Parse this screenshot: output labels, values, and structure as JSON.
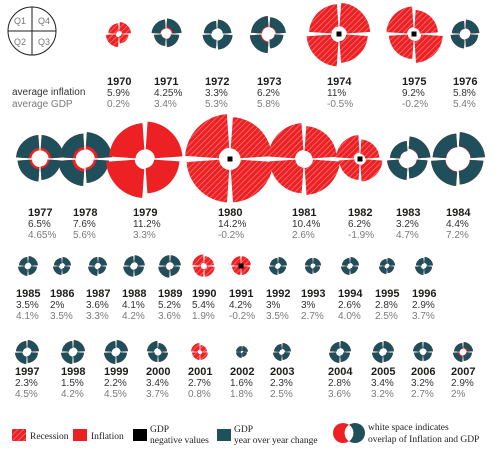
{
  "chart_data": {
    "type": "polar-area",
    "title": "",
    "key_quarters": [
      "Q1",
      "Q4",
      "Q2",
      "Q3"
    ],
    "row_labels": {
      "inflation": "average inflation",
      "gdp": "average GDP"
    },
    "years": [
      {
        "year": "1970",
        "inflation": "5.9%",
        "gdp": "0.2%",
        "q": [
          0.45,
          0.55,
          0.4,
          0.5
        ],
        "recession": true
      },
      {
        "year": "1971",
        "inflation": "4.25%",
        "gdp": "3.4%",
        "q": [
          0.6,
          0.5,
          0.55,
          0.65
        ]
      },
      {
        "year": "1972",
        "inflation": "3.3%",
        "gdp": "5.3%",
        "q": [
          0.55,
          0.6,
          0.65,
          0.6
        ]
      },
      {
        "year": "1973",
        "inflation": "6.2%",
        "gdp": "5.8%",
        "q": [
          0.75,
          0.8,
          0.6,
          0.7
        ]
      },
      {
        "year": "1974",
        "inflation": "11%",
        "gdp": "-0.5%",
        "q": [
          1.25,
          1.35,
          1.2,
          1.3
        ],
        "recession": true
      },
      {
        "year": "1975",
        "inflation": "9.2%",
        "gdp": "-0.2%",
        "q": [
          1.15,
          1.05,
          1.2,
          1.0
        ],
        "recession": true
      },
      {
        "year": "1976",
        "inflation": "5.8%",
        "gdp": "5.4%",
        "q": [
          0.55,
          0.6,
          0.55,
          0.6
        ]
      },
      {
        "year": "1977",
        "inflation": "6.5%",
        "gdp": "4.65%",
        "q": [
          0.8,
          0.75,
          0.7,
          0.8
        ]
      },
      {
        "year": "1978",
        "inflation": "7.6%",
        "gdp": "5.6%",
        "q": [
          0.85,
          0.9,
          0.8,
          0.9
        ]
      },
      {
        "year": "1979",
        "inflation": "11.2%",
        "gdp": "3.3%",
        "q": [
          1.2,
          1.3,
          1.15,
          1.25
        ]
      },
      {
        "year": "1980",
        "inflation": "14.2%",
        "gdp": "-0.2%",
        "q": [
          1.5,
          1.45,
          1.45,
          1.4
        ],
        "recession": true
      },
      {
        "year": "1981",
        "inflation": "10.4%",
        "gdp": "2.6%",
        "q": [
          1.2,
          1.15,
          1.2,
          1.1
        ],
        "recession": true
      },
      {
        "year": "1982",
        "inflation": "6.2%",
        "gdp": "-1.9%",
        "q": [
          0.8,
          0.7,
          0.75,
          0.65
        ],
        "recession": true
      },
      {
        "year": "1983",
        "inflation": "3.2%",
        "gdp": "4.7%",
        "q": [
          0.6,
          0.7,
          0.65,
          0.75
        ]
      },
      {
        "year": "1984",
        "inflation": "4.4%",
        "gdp": "7.2%",
        "q": [
          0.85,
          0.9,
          0.85,
          0.9
        ]
      },
      {
        "year": "1985",
        "inflation": "3.5%",
        "gdp": "4.1%",
        "q": [
          0.5,
          0.55,
          0.5,
          0.55
        ]
      },
      {
        "year": "1986",
        "inflation": "2%",
        "gdp": "3.5%",
        "q": [
          0.45,
          0.5,
          0.45,
          0.5
        ]
      },
      {
        "year": "1987",
        "inflation": "3.6%",
        "gdp": "3.3%",
        "q": [
          0.5,
          0.55,
          0.45,
          0.5
        ]
      },
      {
        "year": "1988",
        "inflation": "4.1%",
        "gdp": "4.2%",
        "q": [
          0.55,
          0.6,
          0.55,
          0.6
        ]
      },
      {
        "year": "1989",
        "inflation": "5.2%",
        "gdp": "3.6%",
        "q": [
          0.6,
          0.65,
          0.55,
          0.6
        ]
      },
      {
        "year": "1990",
        "inflation": "5.4%",
        "gdp": "1.9%",
        "q": [
          0.65,
          0.6,
          0.6,
          0.55
        ],
        "recession": true
      },
      {
        "year": "1991",
        "inflation": "4.2%",
        "gdp": "-0.2%",
        "q": [
          0.55,
          0.5,
          0.5,
          0.55
        ],
        "recession": true
      },
      {
        "year": "1992",
        "inflation": "3%",
        "gdp": "3.5%",
        "q": [
          0.45,
          0.5,
          0.45,
          0.5
        ]
      },
      {
        "year": "1993",
        "inflation": "3%",
        "gdp": "2.7%",
        "q": [
          0.45,
          0.45,
          0.4,
          0.45
        ]
      },
      {
        "year": "1994",
        "inflation": "2.6%",
        "gdp": "4.0%",
        "q": [
          0.45,
          0.5,
          0.45,
          0.5
        ]
      },
      {
        "year": "1995",
        "inflation": "2.8%",
        "gdp": "2.5%",
        "q": [
          0.4,
          0.45,
          0.4,
          0.45
        ]
      },
      {
        "year": "1996",
        "inflation": "2.9%",
        "gdp": "3.7%",
        "q": [
          0.45,
          0.5,
          0.45,
          0.5
        ]
      },
      {
        "year": "1997",
        "inflation": "2.3%",
        "gdp": "4.5%",
        "q": [
          0.55,
          0.6,
          0.55,
          0.6
        ]
      },
      {
        "year": "1998",
        "inflation": "1.5%",
        "gdp": "4.2%",
        "q": [
          0.55,
          0.6,
          0.55,
          0.6
        ]
      },
      {
        "year": "1999",
        "inflation": "2.2%",
        "gdp": "4.5%",
        "q": [
          0.55,
          0.6,
          0.55,
          0.6
        ]
      },
      {
        "year": "2000",
        "inflation": "3.4%",
        "gdp": "3.7%",
        "q": [
          0.55,
          0.5,
          0.5,
          0.45
        ]
      },
      {
        "year": "2001",
        "inflation": "2.7%",
        "gdp": "0.8%",
        "q": [
          0.45,
          0.4,
          0.4,
          0.35
        ],
        "recession": true
      },
      {
        "year": "2002",
        "inflation": "1.6%",
        "gdp": "1.8%",
        "q": [
          0.3,
          0.3,
          0.25,
          0.3
        ]
      },
      {
        "year": "2003",
        "inflation": "2.3%",
        "gdp": "2.5%",
        "q": [
          0.4,
          0.45,
          0.4,
          0.45
        ]
      },
      {
        "year": "2004",
        "inflation": "2.8%",
        "gdp": "3.6%",
        "q": [
          0.5,
          0.55,
          0.5,
          0.55
        ]
      },
      {
        "year": "2005",
        "inflation": "3.4%",
        "gdp": "3.2%",
        "q": [
          0.5,
          0.55,
          0.5,
          0.55
        ]
      },
      {
        "year": "2006",
        "inflation": "3.2%",
        "gdp": "2.7%",
        "q": [
          0.5,
          0.45,
          0.45,
          0.5
        ]
      },
      {
        "year": "2007",
        "inflation": "2.9%",
        "gdp": "2%",
        "q": [
          0.45,
          0.5,
          0.45,
          0.5
        ]
      }
    ],
    "legend": {
      "recession": "Recession",
      "inflation": "Inflation",
      "gdp_negative_l1": "GDP",
      "gdp_negative_l2": "negative values",
      "gdp_yoy_l1": "GDP",
      "gdp_yoy_l2": "year over year change",
      "overlap_l1": "white space indicates",
      "overlap_l2": "overlap of Inflation and GDP"
    },
    "colors": {
      "inflation": "#ed2124",
      "gdp": "#1f4f5b",
      "text": "#1d1d1b",
      "gdp_text": "#7a7a7a",
      "negative": "#000000"
    }
  }
}
